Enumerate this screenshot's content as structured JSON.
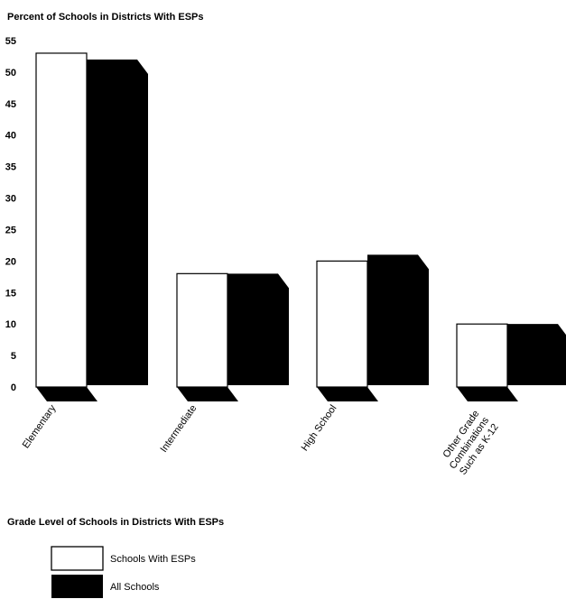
{
  "chart_data": {
    "type": "bar",
    "ylabel": "Percent of Schools in Districts With ESPs",
    "xlabel": "Grade Level of Schools in Districts With ESPs",
    "ylim": [
      0,
      55
    ],
    "yticks": [
      0,
      5,
      10,
      15,
      20,
      25,
      30,
      35,
      40,
      45,
      50,
      55
    ],
    "categories": [
      [
        "Elementary"
      ],
      [
        "Intermediate"
      ],
      [
        "High School"
      ],
      [
        "Other Grade",
        "Combinations",
        "Such as K-12"
      ]
    ],
    "series": [
      {
        "name": "Schools With ESPs",
        "values": [
          53,
          18,
          20,
          10
        ],
        "color": "#ffffff"
      },
      {
        "name": "All Schools",
        "values": [
          52,
          18,
          21,
          10
        ],
        "color": "#000000"
      }
    ],
    "legend_position": "bottom-left",
    "grid": false
  }
}
